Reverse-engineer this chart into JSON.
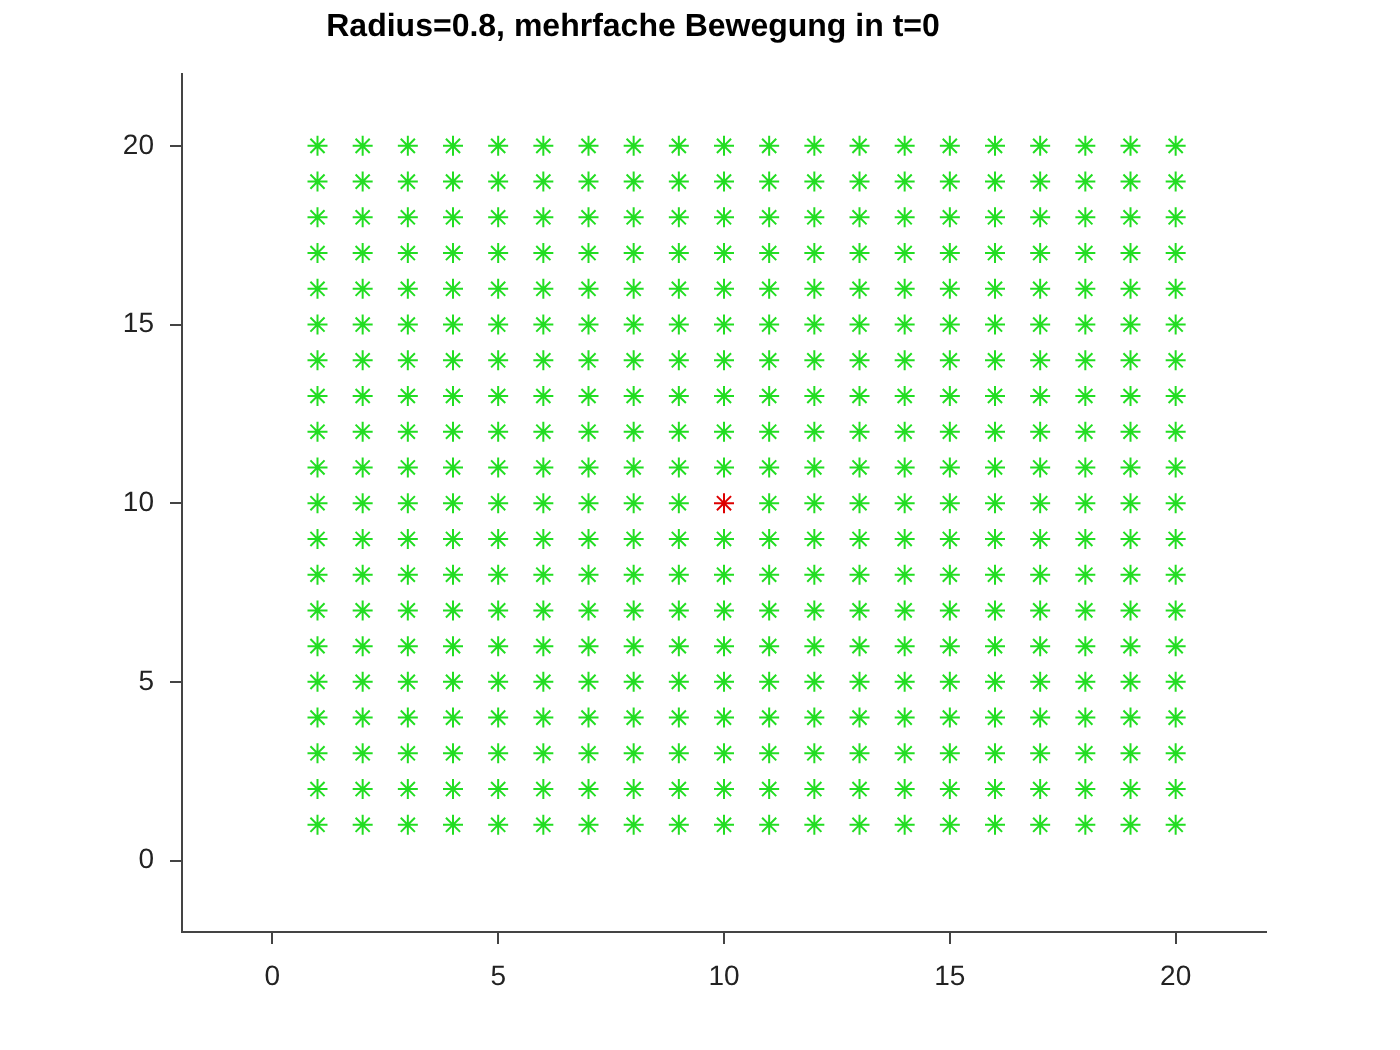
{
  "chart_data": {
    "type": "scatter",
    "title": "Radius=0.8, mehrfache Bewegung in t=0",
    "xlim": [
      -2,
      22
    ],
    "ylim": [
      -2,
      22
    ],
    "xticks": [
      0,
      5,
      10,
      15,
      20
    ],
    "yticks": [
      0,
      5,
      10,
      15,
      20
    ],
    "marker": "cross",
    "series": [
      {
        "color": "#22dd22",
        "x": [
          1,
          2,
          3,
          4,
          5,
          6,
          7,
          8,
          9,
          10,
          11,
          12,
          13,
          14,
          15,
          16,
          17,
          18,
          19,
          20,
          1,
          2,
          3,
          4,
          5,
          6,
          7,
          8,
          9,
          10,
          11,
          12,
          13,
          14,
          15,
          16,
          17,
          18,
          19,
          20,
          1,
          2,
          3,
          4,
          5,
          6,
          7,
          8,
          9,
          10,
          11,
          12,
          13,
          14,
          15,
          16,
          17,
          18,
          19,
          20,
          1,
          2,
          3,
          4,
          5,
          6,
          7,
          8,
          9,
          10,
          11,
          12,
          13,
          14,
          15,
          16,
          17,
          18,
          19,
          20,
          1,
          2,
          3,
          4,
          5,
          6,
          7,
          8,
          9,
          10,
          11,
          12,
          13,
          14,
          15,
          16,
          17,
          18,
          19,
          20,
          1,
          2,
          3,
          4,
          5,
          6,
          7,
          8,
          9,
          10,
          11,
          12,
          13,
          14,
          15,
          16,
          17,
          18,
          19,
          20,
          1,
          2,
          3,
          4,
          5,
          6,
          7,
          8,
          9,
          10,
          11,
          12,
          13,
          14,
          15,
          16,
          17,
          18,
          19,
          20,
          1,
          2,
          3,
          4,
          5,
          6,
          7,
          8,
          9,
          10,
          11,
          12,
          13,
          14,
          15,
          16,
          17,
          18,
          19,
          20,
          1,
          2,
          3,
          4,
          5,
          6,
          7,
          8,
          9,
          10,
          11,
          12,
          13,
          14,
          15,
          16,
          17,
          18,
          19,
          20,
          1,
          2,
          3,
          4,
          5,
          6,
          7,
          8,
          9,
          11,
          12,
          13,
          14,
          15,
          16,
          17,
          18,
          19,
          20,
          1,
          2,
          3,
          4,
          5,
          6,
          7,
          8,
          9,
          10,
          11,
          12,
          13,
          14,
          15,
          16,
          17,
          18,
          19,
          20,
          1,
          2,
          3,
          4,
          5,
          6,
          7,
          8,
          9,
          10,
          11,
          12,
          13,
          14,
          15,
          16,
          17,
          18,
          19,
          20,
          1,
          2,
          3,
          4,
          5,
          6,
          7,
          8,
          9,
          10,
          11,
          12,
          13,
          14,
          15,
          16,
          17,
          18,
          19,
          20,
          1,
          2,
          3,
          4,
          5,
          6,
          7,
          8,
          9,
          10,
          11,
          12,
          13,
          14,
          15,
          16,
          17,
          18,
          19,
          20,
          1,
          2,
          3,
          4,
          5,
          6,
          7,
          8,
          9,
          10,
          11,
          12,
          13,
          14,
          15,
          16,
          17,
          18,
          19,
          20,
          1,
          2,
          3,
          4,
          5,
          6,
          7,
          8,
          9,
          10,
          11,
          12,
          13,
          14,
          15,
          16,
          17,
          18,
          19,
          20,
          1,
          2,
          3,
          4,
          5,
          6,
          7,
          8,
          9,
          10,
          11,
          12,
          13,
          14,
          15,
          16,
          17,
          18,
          19,
          20,
          1,
          2,
          3,
          4,
          5,
          6,
          7,
          8,
          9,
          10,
          11,
          12,
          13,
          14,
          15,
          16,
          17,
          18,
          19,
          20,
          1,
          2,
          3,
          4,
          5,
          6,
          7,
          8,
          9,
          10,
          11,
          12,
          13,
          14,
          15,
          16,
          17,
          18,
          19,
          20,
          1,
          2,
          3,
          4,
          5,
          6,
          7,
          8,
          9,
          10,
          11,
          12,
          13,
          14,
          15,
          16,
          17,
          18,
          19,
          20
        ],
        "values": [
          1,
          1,
          1,
          1,
          1,
          1,
          1,
          1,
          1,
          1,
          1,
          1,
          1,
          1,
          1,
          1,
          1,
          1,
          1,
          1,
          2,
          2,
          2,
          2,
          2,
          2,
          2,
          2,
          2,
          2,
          2,
          2,
          2,
          2,
          2,
          2,
          2,
          2,
          2,
          2,
          3,
          3,
          3,
          3,
          3,
          3,
          3,
          3,
          3,
          3,
          3,
          3,
          3,
          3,
          3,
          3,
          3,
          3,
          3,
          3,
          4,
          4,
          4,
          4,
          4,
          4,
          4,
          4,
          4,
          4,
          4,
          4,
          4,
          4,
          4,
          4,
          4,
          4,
          4,
          4,
          5,
          5,
          5,
          5,
          5,
          5,
          5,
          5,
          5,
          5,
          5,
          5,
          5,
          5,
          5,
          5,
          5,
          5,
          5,
          5,
          6,
          6,
          6,
          6,
          6,
          6,
          6,
          6,
          6,
          6,
          6,
          6,
          6,
          6,
          6,
          6,
          6,
          6,
          6,
          6,
          7,
          7,
          7,
          7,
          7,
          7,
          7,
          7,
          7,
          7,
          7,
          7,
          7,
          7,
          7,
          7,
          7,
          7,
          7,
          7,
          8,
          8,
          8,
          8,
          8,
          8,
          8,
          8,
          8,
          8,
          8,
          8,
          8,
          8,
          8,
          8,
          8,
          8,
          8,
          8,
          9,
          9,
          9,
          9,
          9,
          9,
          9,
          9,
          9,
          9,
          9,
          9,
          9,
          9,
          9,
          9,
          9,
          9,
          9,
          9,
          10,
          10,
          10,
          10,
          10,
          10,
          10,
          10,
          10,
          10,
          10,
          10,
          10,
          10,
          10,
          10,
          10,
          10,
          10,
          11,
          11,
          11,
          11,
          11,
          11,
          11,
          11,
          11,
          11,
          11,
          11,
          11,
          11,
          11,
          11,
          11,
          11,
          11,
          11,
          12,
          12,
          12,
          12,
          12,
          12,
          12,
          12,
          12,
          12,
          12,
          12,
          12,
          12,
          12,
          12,
          12,
          12,
          12,
          12,
          13,
          13,
          13,
          13,
          13,
          13,
          13,
          13,
          13,
          13,
          13,
          13,
          13,
          13,
          13,
          13,
          13,
          13,
          13,
          13,
          14,
          14,
          14,
          14,
          14,
          14,
          14,
          14,
          14,
          14,
          14,
          14,
          14,
          14,
          14,
          14,
          14,
          14,
          14,
          14,
          15,
          15,
          15,
          15,
          15,
          15,
          15,
          15,
          15,
          15,
          15,
          15,
          15,
          15,
          15,
          15,
          15,
          15,
          15,
          15,
          16,
          16,
          16,
          16,
          16,
          16,
          16,
          16,
          16,
          16,
          16,
          16,
          16,
          16,
          16,
          16,
          16,
          16,
          16,
          16,
          17,
          17,
          17,
          17,
          17,
          17,
          17,
          17,
          17,
          17,
          17,
          17,
          17,
          17,
          17,
          17,
          17,
          17,
          17,
          17,
          18,
          18,
          18,
          18,
          18,
          18,
          18,
          18,
          18,
          18,
          18,
          18,
          18,
          18,
          18,
          18,
          18,
          18,
          18,
          18,
          19,
          19,
          19,
          19,
          19,
          19,
          19,
          19,
          19,
          19,
          19,
          19,
          19,
          19,
          19,
          19,
          19,
          19,
          19,
          19,
          20,
          20,
          20,
          20,
          20,
          20,
          20,
          20,
          20,
          20,
          20,
          20,
          20,
          20,
          20,
          20,
          20,
          20,
          20,
          20
        ]
      },
      {
        "color": "#dd0000",
        "x": [
          10
        ],
        "values": [
          10
        ]
      }
    ]
  }
}
